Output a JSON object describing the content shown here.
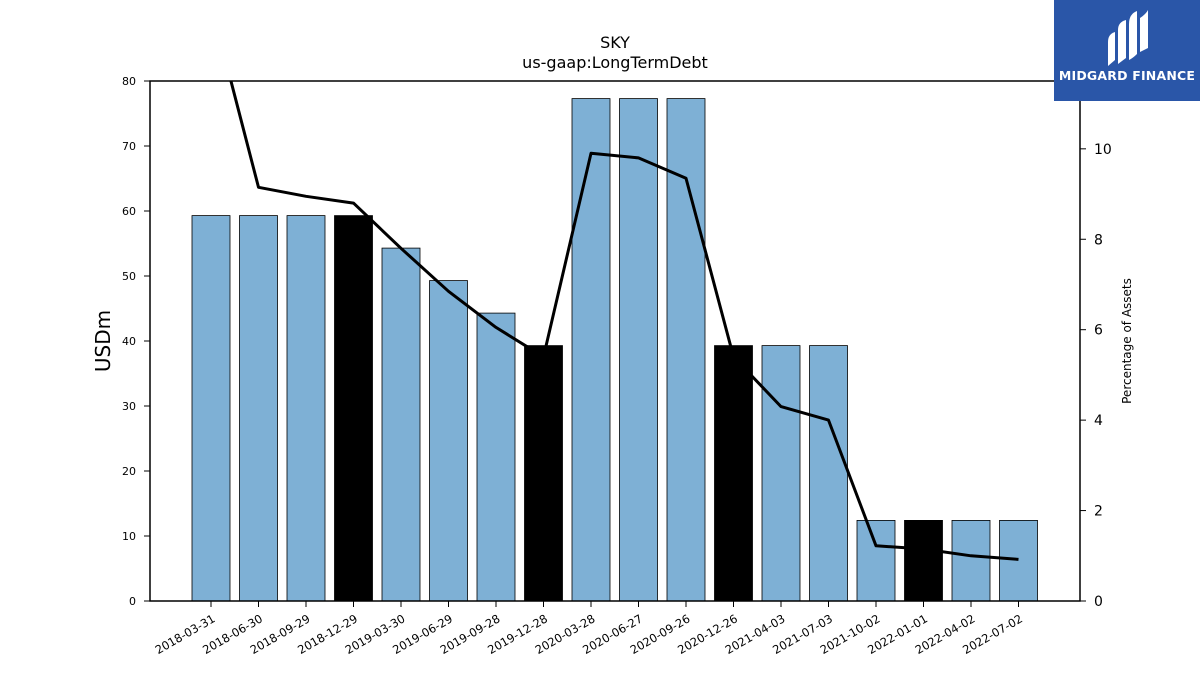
{
  "brand": {
    "name": "MIDGARD FINANCE",
    "bg_color": "#2a56a8",
    "icon": "midgard-logo-icon"
  },
  "chart_data": {
    "type": "bar",
    "title": "SKY",
    "subtitle": "us-gaap:LongTermDebt",
    "ylabel": "USDm",
    "y2label": "Percentage of Assets",
    "ylim": [
      0,
      80
    ],
    "y2lim": [
      0,
      11.5
    ],
    "yticks": [
      0,
      10,
      20,
      30,
      40,
      50,
      60,
      70,
      80
    ],
    "y2ticks": [
      0,
      2,
      4,
      6,
      8,
      10
    ],
    "categories": [
      "2018-03-31",
      "2018-06-30",
      "2018-09-29",
      "2018-12-29",
      "2019-03-30",
      "2019-06-29",
      "2019-09-28",
      "2019-12-28",
      "2020-03-28",
      "2020-06-27",
      "2020-09-26",
      "2020-12-26",
      "2021-04-03",
      "2021-07-03",
      "2021-10-02",
      "2022-01-01",
      "2022-04-02",
      "2022-07-02"
    ],
    "series": [
      {
        "kind": "bar",
        "values": [
          59.3,
          59.3,
          59.3,
          59.3,
          54.3,
          49.3,
          44.3,
          39.3,
          77.3,
          77.3,
          77.3,
          39.3,
          39.3,
          39.3,
          12.4,
          12.4,
          12.4,
          12.4
        ],
        "highlight": [
          false,
          false,
          false,
          true,
          false,
          false,
          false,
          true,
          false,
          false,
          false,
          true,
          false,
          false,
          false,
          true,
          false,
          false
        ],
        "color": "#7eb0d5",
        "highlight_color": "#000000"
      },
      {
        "kind": "line",
        "axis": "right",
        "values": [
          13.2,
          9.15,
          8.95,
          8.8,
          7.8,
          6.85,
          6.05,
          5.4,
          9.9,
          9.8,
          9.35,
          5.4,
          4.3,
          4.0,
          1.22,
          1.15,
          1.0,
          0.92
        ],
        "color": "#000000"
      }
    ],
    "grid": false,
    "legend": "none"
  }
}
